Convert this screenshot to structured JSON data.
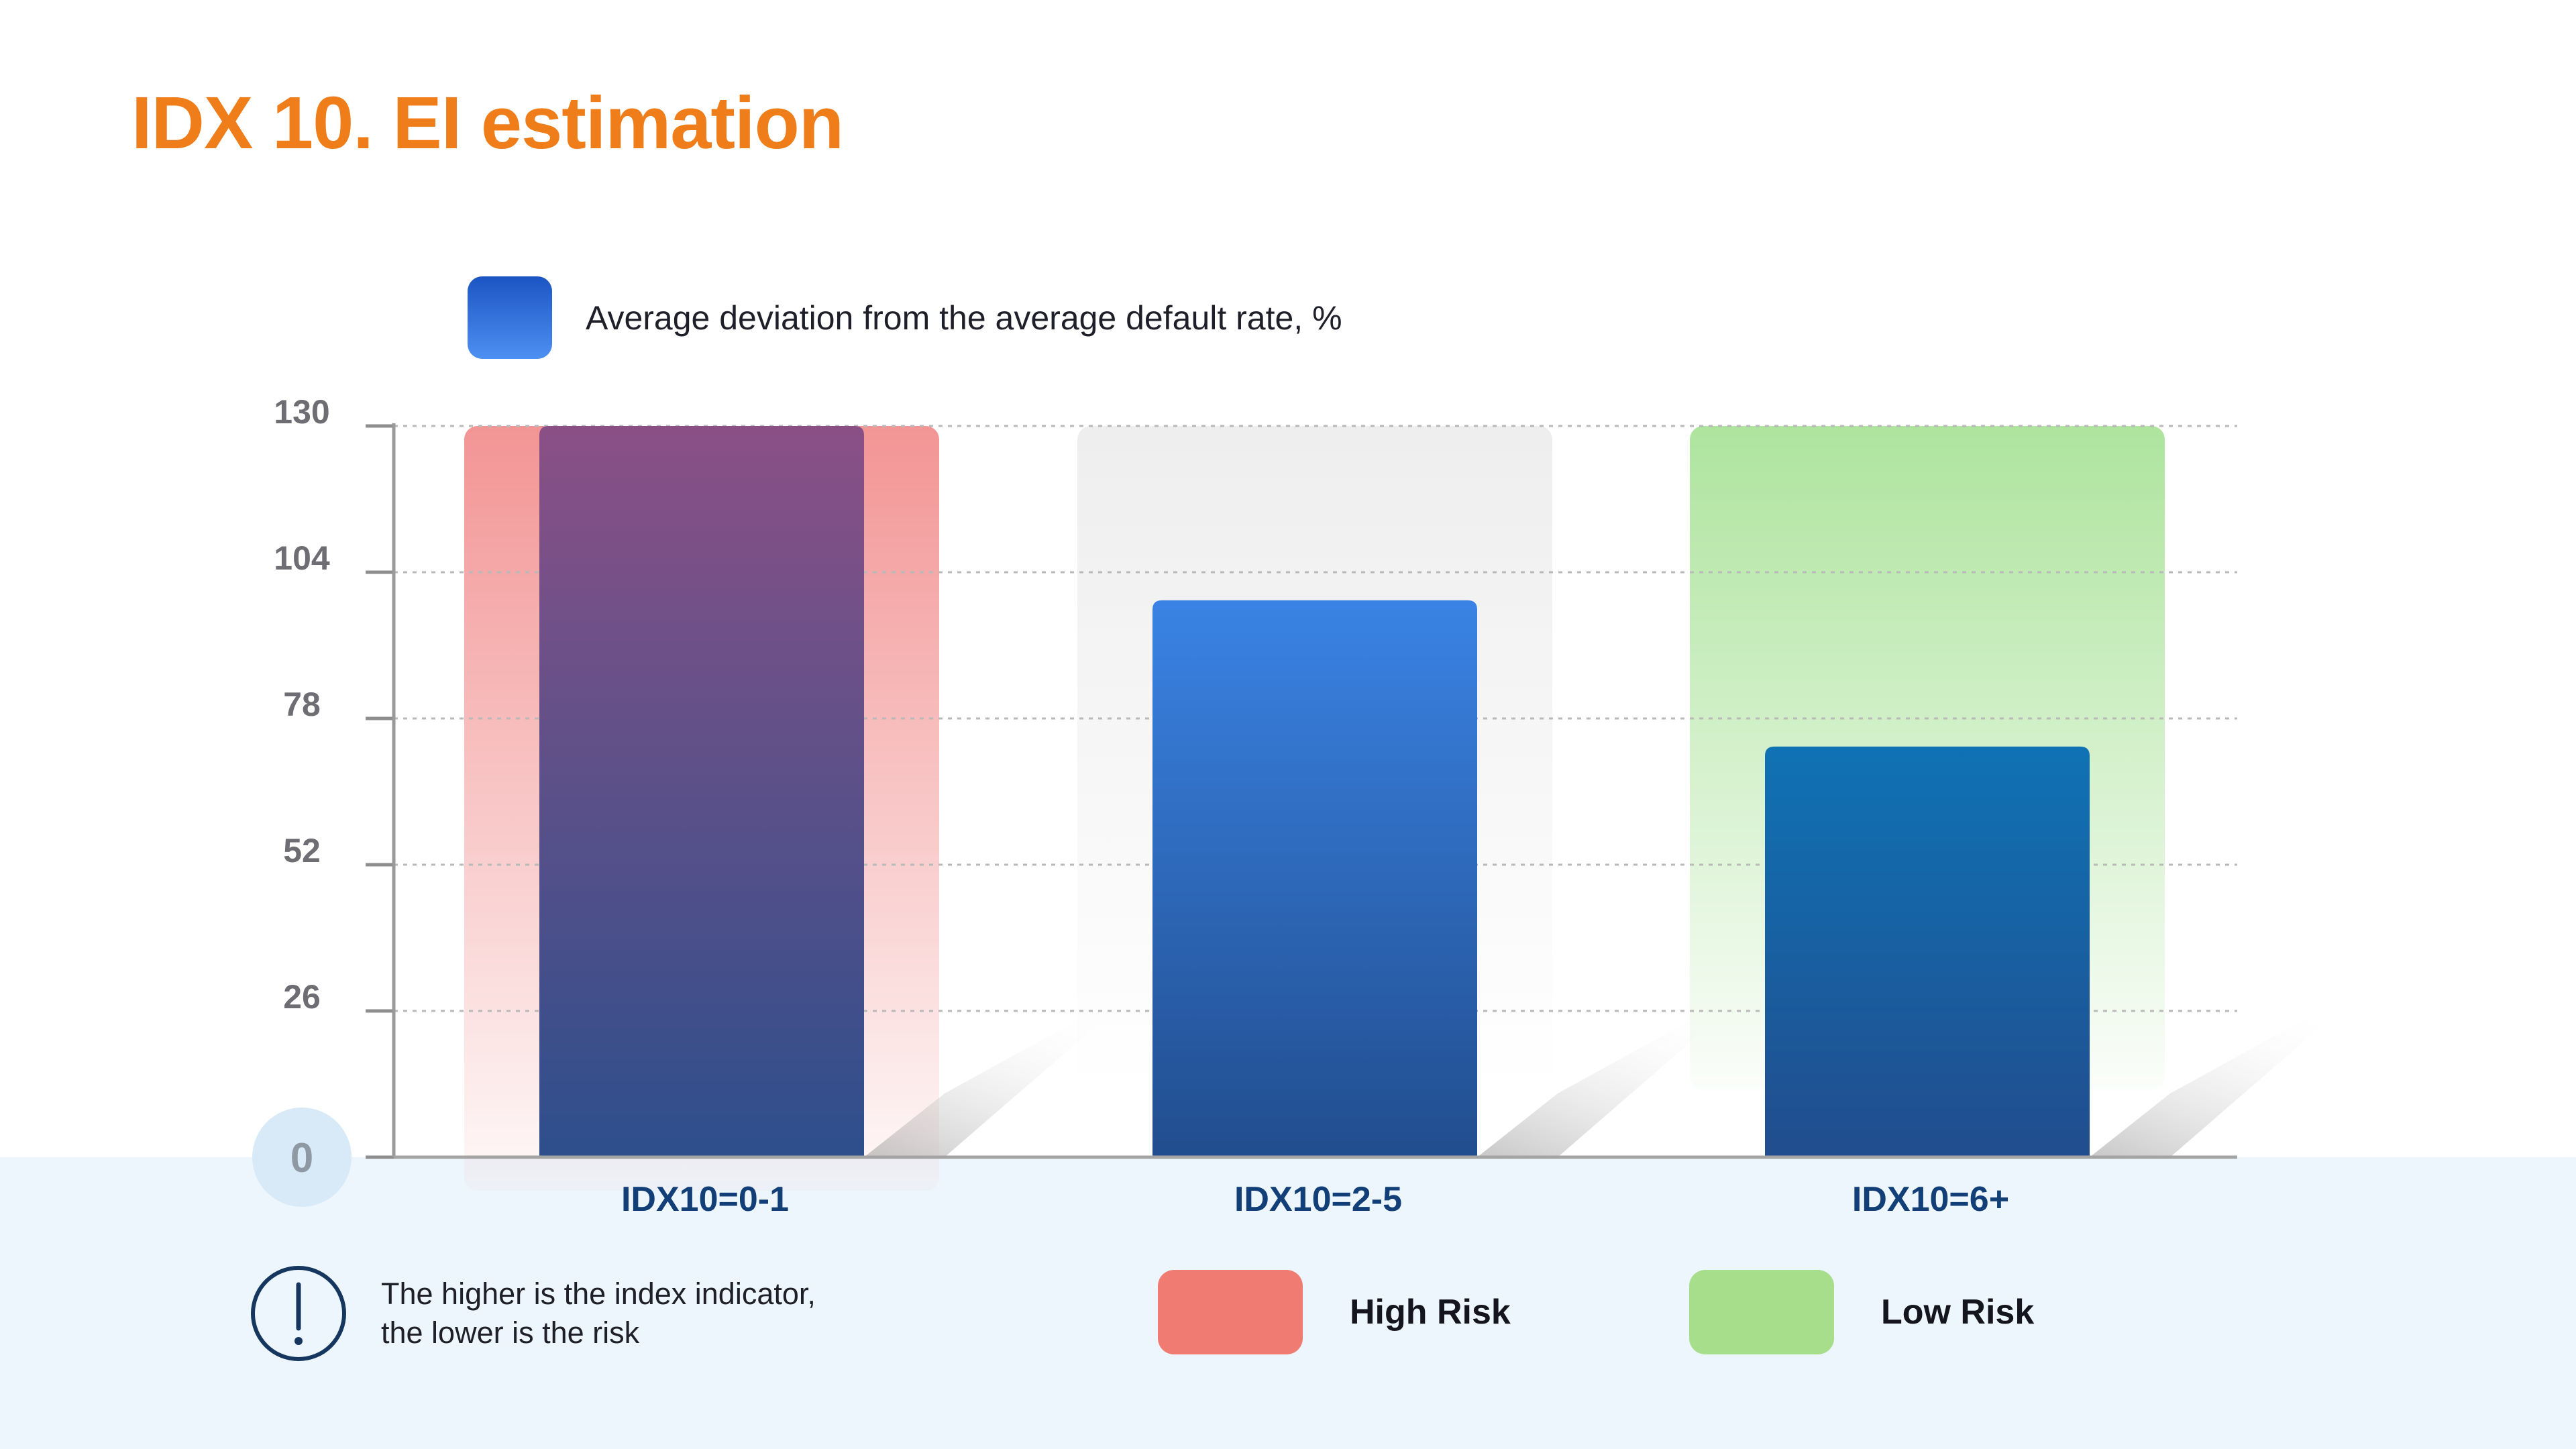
{
  "title": "IDX 10. EI estimation",
  "chart_data": {
    "type": "bar",
    "categories": [
      "IDX10=0-1",
      "IDX10=2-5",
      "IDX10=6+"
    ],
    "series": [
      {
        "name": "Average deviation from the average default rate, %",
        "values": [
          130,
          99,
          73
        ]
      }
    ],
    "risk_zones": [
      {
        "category": "IDX10=0-1",
        "zone": "High Risk"
      },
      {
        "category": "IDX10=2-5",
        "zone": ""
      },
      {
        "category": "IDX10=6+",
        "zone": "Low Risk"
      }
    ],
    "ylim": [
      0,
      130
    ],
    "yticks": [
      0,
      26,
      52,
      78,
      104,
      130
    ],
    "xlabel": "",
    "ylabel": "",
    "grid": true,
    "legend_position": "top-left",
    "colors": {
      "bar_high": [
        "#8a5086",
        "#2d4f8c"
      ],
      "bar_mid": [
        "#3a83e4",
        "#214d8e"
      ],
      "bar_low": [
        "#0f72b4",
        "#214d8e"
      ],
      "zone_high": "#f28f8f",
      "zone_neutral": "#f1f1f1",
      "zone_low": "#aee49e"
    }
  },
  "note": {
    "line1": "The higher is the index indicator,",
    "line2": "the lower is the risk",
    "icon": "exclamation-circle-icon"
  },
  "risk_legend": {
    "high": {
      "label": "High Risk",
      "color": "#ef7b72"
    },
    "low": {
      "label": "Low Risk",
      "color": "#a6de8c"
    }
  },
  "colors": {
    "title": "#ef7d1a",
    "band": "#edf6fc",
    "category_label": "#123f78"
  }
}
